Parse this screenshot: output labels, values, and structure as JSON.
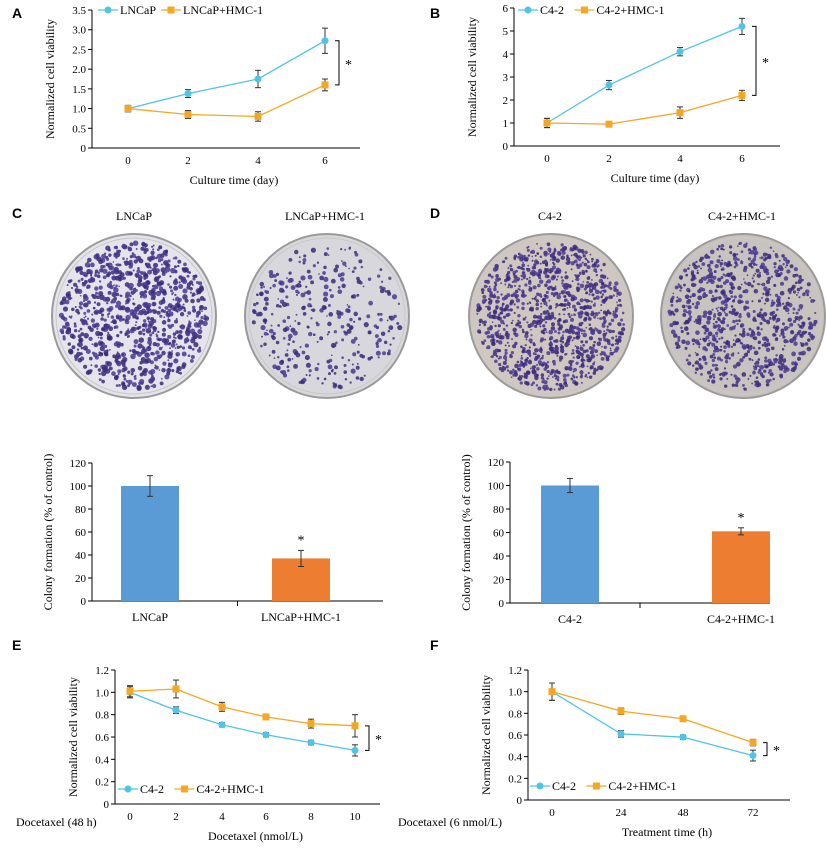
{
  "panels": {
    "A": "A",
    "B": "B",
    "C": "C",
    "D": "D",
    "E": "E",
    "F": "F"
  },
  "colors": {
    "blue_line": "#4FC3E8",
    "orange_line": "#F5A623",
    "blue_bar": "#5B9BD5",
    "orange_bar": "#ED7D31",
    "error": "#333333"
  },
  "dishes": {
    "C_left": "LNCaP",
    "C_right": "LNCaP+HMC-1",
    "D_left": "C4-2",
    "D_right": "C4-2+HMC-1"
  },
  "chart_data": [
    {
      "id": "A",
      "type": "line",
      "ylabel": "Normalized cell viability",
      "xlabel": "Culture time (day)",
      "x": [
        0,
        2,
        4,
        6
      ],
      "xticks": [
        "0",
        "2",
        "4",
        "6"
      ],
      "ylim": [
        0,
        3.5
      ],
      "yticks": [
        "0",
        "0.5",
        "1.0",
        "1.5",
        "2.0",
        "2.5",
        "3.0",
        "3.5"
      ],
      "legend_position": "top-left",
      "series": [
        {
          "name": "LNCaP",
          "color": "#4FC3E8",
          "marker": "circle",
          "values": [
            1.0,
            1.38,
            1.75,
            2.72
          ],
          "errors": [
            0.08,
            0.1,
            0.22,
            0.32
          ]
        },
        {
          "name": "LNCaP+HMC-1",
          "color": "#F5A623",
          "marker": "square",
          "values": [
            1.0,
            0.85,
            0.8,
            1.6
          ],
          "errors": [
            0.08,
            0.1,
            0.12,
            0.15
          ]
        }
      ],
      "significance": "*"
    },
    {
      "id": "B",
      "type": "line",
      "ylabel": "Normalized cell viability",
      "xlabel": "Culture time (day)",
      "x": [
        0,
        2,
        4,
        6
      ],
      "xticks": [
        "0",
        "2",
        "4",
        "6"
      ],
      "ylim": [
        0,
        6
      ],
      "yticks": [
        "0",
        "1",
        "2",
        "3",
        "4",
        "5",
        "6"
      ],
      "legend_position": "top-left",
      "series": [
        {
          "name": "C4-2",
          "color": "#4FC3E8",
          "marker": "circle",
          "values": [
            1.0,
            2.65,
            4.1,
            5.2
          ],
          "errors": [
            0.2,
            0.2,
            0.18,
            0.35
          ]
        },
        {
          "name": "C4-2+HMC-1",
          "color": "#F5A623",
          "marker": "square",
          "values": [
            1.0,
            0.95,
            1.45,
            2.2
          ],
          "errors": [
            0.2,
            0.05,
            0.25,
            0.22
          ]
        }
      ],
      "significance": "*"
    },
    {
      "id": "C_bar",
      "type": "bar",
      "ylabel": "Colony formation (% of control)",
      "categories": [
        "LNCaP",
        "LNCaP+HMC-1"
      ],
      "values": [
        100,
        37
      ],
      "errors": [
        9,
        7
      ],
      "colors": [
        "#5B9BD5",
        "#ED7D31"
      ],
      "ylim": [
        0,
        120
      ],
      "yticks": [
        "0",
        "20",
        "40",
        "60",
        "80",
        "100",
        "120"
      ],
      "annotations": [
        "",
        "*"
      ]
    },
    {
      "id": "D_bar",
      "type": "bar",
      "ylabel": "Colony formation (% of control)",
      "categories": [
        "C4-2",
        "C4-2+HMC-1"
      ],
      "values": [
        100,
        61
      ],
      "errors": [
        6,
        3
      ],
      "colors": [
        "#5B9BD5",
        "#ED7D31"
      ],
      "ylim": [
        0,
        120
      ],
      "yticks": [
        "0",
        "20",
        "40",
        "60",
        "80",
        "100",
        "120"
      ],
      "annotations": [
        "",
        "*"
      ]
    },
    {
      "id": "E",
      "type": "line",
      "ylabel": "Normalized cell viability",
      "xlabel": "Docetaxel (nmol/L)",
      "row_label": "Docetaxel (48 h)",
      "x": [
        0,
        2,
        4,
        6,
        8,
        10
      ],
      "xticks": [
        "0",
        "2",
        "4",
        "6",
        "8",
        "10"
      ],
      "ylim": [
        0,
        1.2
      ],
      "yticks": [
        "0",
        "0.2",
        "0.4",
        "0.6",
        "0.8",
        "1.0",
        "1.2"
      ],
      "legend_position": "bottom-left",
      "series": [
        {
          "name": "C4-2",
          "color": "#4FC3E8",
          "marker": "circle",
          "values": [
            1.0,
            0.84,
            0.71,
            0.62,
            0.55,
            0.48
          ],
          "errors": [
            0.05,
            0.03,
            0.02,
            0.02,
            0.02,
            0.05
          ]
        },
        {
          "name": "C4-2+HMC-1",
          "color": "#F5A623",
          "marker": "square",
          "values": [
            1.01,
            1.03,
            0.87,
            0.78,
            0.72,
            0.7
          ],
          "errors": [
            0.05,
            0.08,
            0.04,
            0.02,
            0.04,
            0.1
          ]
        }
      ],
      "significance": "*"
    },
    {
      "id": "F",
      "type": "line",
      "ylabel": "Normalized cell viability",
      "xlabel": "Treatment time (h)",
      "row_label": "Docetaxel (6 nmol/L)",
      "x": [
        0,
        24,
        48,
        72
      ],
      "xticks": [
        "0",
        "24",
        "48",
        "72"
      ],
      "ylim": [
        0,
        1.2
      ],
      "yticks": [
        "0",
        "0.2",
        "0.4",
        "0.6",
        "0.8",
        "1.0",
        "1.2"
      ],
      "legend_position": "bottom-left",
      "series": [
        {
          "name": "C4-2",
          "color": "#4FC3E8",
          "marker": "circle",
          "values": [
            1.0,
            0.61,
            0.58,
            0.41
          ],
          "errors": [
            0.08,
            0.03,
            0.02,
            0.05
          ]
        },
        {
          "name": "C4-2+HMC-1",
          "color": "#F5A623",
          "marker": "square",
          "values": [
            1.0,
            0.82,
            0.75,
            0.53
          ],
          "errors": [
            0.08,
            0.03,
            0.02,
            0.03
          ]
        }
      ],
      "significance": "*"
    }
  ]
}
